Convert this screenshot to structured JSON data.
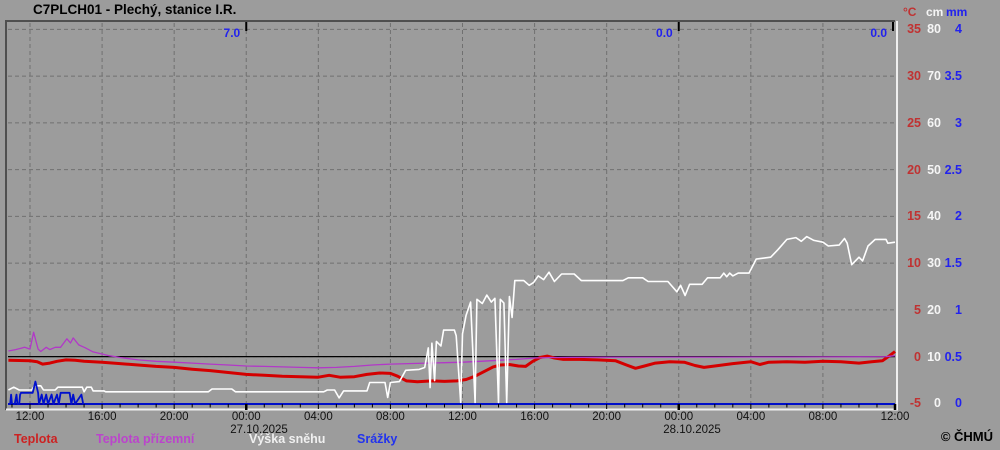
{
  "window": {
    "title": "C7PLCH01 - Plechý, stanice I.R.",
    "copyright": "© ČHMÚ"
  },
  "colors": {
    "background": "#9c9c9c",
    "grid": "#707070",
    "zero_line": "#000000",
    "temp_line": "#d40000",
    "ground_temp_line": "#b238c8",
    "snow_line": "#ffffff",
    "precip_line": "#0010cc",
    "axis_temp_text": "#c03232",
    "axis_snow_text": "#f5f5f5",
    "axis_precip_text": "#2222ee",
    "legend_temp": "#cc2222",
    "legend_ground": "#bb44cc",
    "legend_snow": "#f0f0f0",
    "legend_precip": "#2233ee"
  },
  "axes": {
    "x_labels": [
      "12:00",
      "16:00",
      "20:00",
      "00:00",
      "04:00",
      "08:00",
      "12:00",
      "16:00",
      "20:00",
      "00:00",
      "04:00",
      "08:00",
      "12:00"
    ],
    "dates": [
      "27.10.2025",
      "28.10.2025"
    ],
    "right_header": [
      "°C",
      "cm",
      "mm"
    ],
    "right_rows": [
      [
        "35",
        "80",
        "4"
      ],
      [
        "30",
        "70",
        "3.5"
      ],
      [
        "25",
        "60",
        "3"
      ],
      [
        "20",
        "50",
        "2.5"
      ],
      [
        "15",
        "40",
        "2"
      ],
      [
        "10",
        "30",
        "1.5"
      ],
      [
        "5",
        "20",
        "1"
      ],
      [
        "0",
        "10",
        "0.5"
      ],
      [
        "-5",
        "0",
        "0"
      ]
    ]
  },
  "legend": [
    {
      "label": "Teplota",
      "color": "#cc2222"
    },
    {
      "label": "Teplota přízemní",
      "color": "#bb44cc"
    },
    {
      "label": "Výška sněhu",
      "color": "#f0f0f0"
    },
    {
      "label": "Srážky",
      "color": "#2233ee"
    }
  ],
  "chart_data": {
    "type": "line",
    "title": "C7PLCH01 - Plechý, stanice I.R.",
    "x_axis": {
      "start": "26.10.2025 12:00",
      "end": "28.10.2025 12:00",
      "hours_total": 48,
      "label_every_hours": 4,
      "minor_tick_hours": 1,
      "midnight_hours": [
        12,
        36
      ]
    },
    "y_axes": {
      "temp_C": {
        "min": -5,
        "max": 35,
        "grid_step": 5,
        "zero_line": true
      },
      "snow_cm": {
        "min": 0,
        "max": 80
      },
      "precip_mm": {
        "min": 0,
        "max": 4
      }
    },
    "annotations": [
      {
        "text": "7.0",
        "t": 12
      },
      {
        "text": "0.0",
        "t": 36
      },
      {
        "text": "0.0",
        "t": 48
      }
    ],
    "series": [
      {
        "name": "Teplota",
        "unit": "temp_C",
        "color": "#d40000",
        "width": 3,
        "points": [
          [
            -1.2,
            -0.4
          ],
          [
            0,
            -0.45
          ],
          [
            0.4,
            -0.55
          ],
          [
            0.7,
            -0.8
          ],
          [
            1.1,
            -0.7
          ],
          [
            1.5,
            -0.5
          ],
          [
            2,
            -0.35
          ],
          [
            2.5,
            -0.4
          ],
          [
            3,
            -0.5
          ],
          [
            4,
            -0.6
          ],
          [
            5,
            -0.75
          ],
          [
            6,
            -0.9
          ],
          [
            7,
            -1.05
          ],
          [
            8,
            -1.15
          ],
          [
            9,
            -1.35
          ],
          [
            10,
            -1.5
          ],
          [
            11,
            -1.7
          ],
          [
            12,
            -1.9
          ],
          [
            13,
            -2.0
          ],
          [
            14,
            -2.1
          ],
          [
            15,
            -2.15
          ],
          [
            16,
            -2.2
          ],
          [
            16.6,
            -2.0
          ],
          [
            17.2,
            -2.2
          ],
          [
            18,
            -2.15
          ],
          [
            18.7,
            -1.9
          ],
          [
            19.4,
            -1.75
          ],
          [
            20,
            -1.8
          ],
          [
            20.4,
            -2.1
          ],
          [
            20.9,
            -2.6
          ],
          [
            21.5,
            -2.7
          ],
          [
            22.3,
            -2.6
          ],
          [
            23,
            -2.65
          ],
          [
            23.7,
            -2.6
          ],
          [
            24.2,
            -2.45
          ],
          [
            24.7,
            -2.1
          ],
          [
            25.2,
            -1.6
          ],
          [
            25.7,
            -1.1
          ],
          [
            26.1,
            -0.9
          ],
          [
            26.6,
            -0.85
          ],
          [
            27.1,
            -1.0
          ],
          [
            27.5,
            -1.05
          ],
          [
            27.9,
            -0.5
          ],
          [
            28.3,
            -0.1
          ],
          [
            28.7,
            0.05
          ],
          [
            29.1,
            -0.15
          ],
          [
            29.6,
            -0.3
          ],
          [
            30.5,
            -0.3
          ],
          [
            31.5,
            -0.35
          ],
          [
            32.5,
            -0.45
          ],
          [
            33.1,
            -0.9
          ],
          [
            33.6,
            -1.25
          ],
          [
            34.1,
            -1.0
          ],
          [
            34.7,
            -0.7
          ],
          [
            35.5,
            -0.55
          ],
          [
            36.3,
            -0.6
          ],
          [
            36.9,
            -0.95
          ],
          [
            37.4,
            -1.15
          ],
          [
            38,
            -1.0
          ],
          [
            39,
            -0.75
          ],
          [
            40,
            -0.55
          ],
          [
            40.5,
            -0.85
          ],
          [
            41,
            -0.6
          ],
          [
            42,
            -0.55
          ],
          [
            43,
            -0.6
          ],
          [
            44,
            -0.5
          ],
          [
            45,
            -0.55
          ],
          [
            46,
            -0.7
          ],
          [
            46.7,
            -0.55
          ],
          [
            47.3,
            -0.45
          ],
          [
            47.7,
            0.1
          ],
          [
            48,
            0.55
          ]
        ]
      },
      {
        "name": "Teplota přízemní",
        "unit": "temp_C",
        "color": "#b238c8",
        "width": 1.3,
        "points": [
          [
            -1.2,
            0.6
          ],
          [
            -0.8,
            0.75
          ],
          [
            -0.5,
            0.9
          ],
          [
            -0.3,
            1.0
          ],
          [
            0,
            0.8
          ],
          [
            0.2,
            2.6
          ],
          [
            0.45,
            0.8
          ],
          [
            0.6,
            0.55
          ],
          [
            0.9,
            1.0
          ],
          [
            1.1,
            0.75
          ],
          [
            1.4,
            1.0
          ],
          [
            1.7,
            1.0
          ],
          [
            2.05,
            1.9
          ],
          [
            2.25,
            1.45
          ],
          [
            2.4,
            2.0
          ],
          [
            2.7,
            1.25
          ],
          [
            3.05,
            0.95
          ],
          [
            3.5,
            0.5
          ],
          [
            4.05,
            0.25
          ],
          [
            4.4,
            0.1
          ],
          [
            5,
            -0.1
          ],
          [
            6,
            -0.35
          ],
          [
            7,
            -0.5
          ],
          [
            8,
            -0.6
          ],
          [
            9,
            -0.7
          ],
          [
            10,
            -0.8
          ],
          [
            11,
            -0.9
          ],
          [
            12,
            -1.0
          ],
          [
            13,
            -1.05
          ],
          [
            14,
            -1.1
          ],
          [
            15,
            -1.15
          ],
          [
            16,
            -1.2
          ],
          [
            17,
            -1.15
          ],
          [
            18,
            -1.05
          ],
          [
            19,
            -0.9
          ],
          [
            20,
            -0.8
          ],
          [
            21,
            -0.75
          ],
          [
            22,
            -0.7
          ],
          [
            23,
            -0.65
          ],
          [
            24,
            -0.6
          ],
          [
            25,
            -0.5
          ],
          [
            26,
            -0.4
          ],
          [
            27,
            -0.3
          ],
          [
            28,
            -0.15
          ],
          [
            29,
            -0.1
          ],
          [
            30,
            -0.08
          ],
          [
            32,
            -0.06
          ],
          [
            34,
            -0.05
          ],
          [
            36,
            -0.05
          ],
          [
            38,
            -0.05
          ],
          [
            40,
            -0.04
          ],
          [
            42,
            -0.04
          ],
          [
            44,
            -0.03
          ],
          [
            46,
            -0.02
          ],
          [
            47.5,
            0.0
          ],
          [
            48,
            0.1
          ]
        ]
      },
      {
        "name": "Výška sněhu",
        "unit": "snow_cm",
        "color": "#ffffff",
        "width": 1.6,
        "points": [
          [
            -1.2,
            3.0
          ],
          [
            -0.9,
            3.6
          ],
          [
            -0.6,
            3.0
          ],
          [
            0.1,
            3.0
          ],
          [
            0.25,
            3.9
          ],
          [
            0.6,
            3.9
          ],
          [
            0.75,
            3.0
          ],
          [
            1.4,
            3.0
          ],
          [
            1.55,
            3.6
          ],
          [
            2.9,
            3.6
          ],
          [
            3.0,
            2.6
          ],
          [
            3.15,
            3.6
          ],
          [
            3.4,
            3.6
          ],
          [
            3.5,
            2.8
          ],
          [
            4.1,
            2.8
          ],
          [
            4.2,
            2.6
          ],
          [
            9.9,
            2.6
          ],
          [
            10.1,
            3.2
          ],
          [
            11.2,
            3.2
          ],
          [
            11.4,
            2.6
          ],
          [
            16.3,
            2.6
          ],
          [
            16.5,
            3.0
          ],
          [
            16.9,
            3.0
          ],
          [
            17.15,
            1.3
          ],
          [
            17.4,
            2.8
          ],
          [
            18.7,
            2.8
          ],
          [
            18.85,
            4.6
          ],
          [
            19.7,
            4.6
          ],
          [
            19.85,
            1.4
          ],
          [
            20.0,
            4.6
          ],
          [
            20.5,
            4.8
          ],
          [
            20.85,
            7.2
          ],
          [
            21.6,
            7.4
          ],
          [
            21.9,
            7.8
          ],
          [
            22.1,
            12.0
          ],
          [
            22.2,
            3.5
          ],
          [
            22.3,
            13.0
          ],
          [
            22.45,
            5.0
          ],
          [
            22.55,
            13.4
          ],
          [
            22.8,
            12.4
          ],
          [
            22.95,
            15.8
          ],
          [
            23.55,
            15.8
          ],
          [
            23.65,
            14.6
          ],
          [
            23.9,
            0.3
          ],
          [
            24.0,
            15.0
          ],
          [
            24.2,
            19.0
          ],
          [
            24.45,
            21.8
          ],
          [
            24.7,
            0.3
          ],
          [
            24.8,
            22.4
          ],
          [
            25.1,
            21.5
          ],
          [
            25.35,
            23.3
          ],
          [
            25.6,
            21.8
          ],
          [
            25.8,
            22.6
          ],
          [
            26.0,
            0.3
          ],
          [
            26.1,
            22.4
          ],
          [
            26.3,
            21.6
          ],
          [
            26.45,
            0.3
          ],
          [
            26.6,
            23.0
          ],
          [
            26.75,
            18.5
          ],
          [
            26.9,
            26.4
          ],
          [
            27.4,
            26.4
          ],
          [
            27.7,
            25.4
          ],
          [
            27.95,
            26.0
          ],
          [
            28.2,
            27.4
          ],
          [
            28.5,
            26.6
          ],
          [
            28.8,
            28.2
          ],
          [
            29.1,
            26.2
          ],
          [
            29.5,
            27.8
          ],
          [
            30.2,
            27.8
          ],
          [
            30.6,
            26.4
          ],
          [
            32.9,
            26.4
          ],
          [
            33.2,
            27.0
          ],
          [
            34.0,
            27.0
          ],
          [
            34.3,
            26.2
          ],
          [
            35.4,
            26.2
          ],
          [
            35.9,
            24.0
          ],
          [
            36.1,
            25.4
          ],
          [
            36.35,
            23.2
          ],
          [
            36.6,
            25.6
          ],
          [
            37.3,
            25.6
          ],
          [
            37.6,
            27.0
          ],
          [
            38.3,
            27.0
          ],
          [
            38.5,
            28.0
          ],
          [
            38.66,
            27.2
          ],
          [
            38.83,
            28.0
          ],
          [
            39.0,
            27.4
          ],
          [
            39.3,
            28.0
          ],
          [
            39.9,
            28.0
          ],
          [
            40.3,
            31.0
          ],
          [
            41.1,
            31.4
          ],
          [
            41.5,
            33.0
          ],
          [
            42.0,
            35.2
          ],
          [
            42.5,
            35.6
          ],
          [
            42.8,
            34.8
          ],
          [
            43.1,
            35.8
          ],
          [
            43.5,
            35.0
          ],
          [
            44.0,
            34.6
          ],
          [
            44.3,
            33.8
          ],
          [
            44.9,
            34.0
          ],
          [
            45.2,
            35.4
          ],
          [
            45.35,
            34.4
          ],
          [
            45.6,
            29.8
          ],
          [
            46.0,
            31.4
          ],
          [
            46.2,
            30.6
          ],
          [
            46.5,
            33.8
          ],
          [
            46.9,
            35.2
          ],
          [
            47.5,
            35.2
          ],
          [
            47.6,
            34.4
          ],
          [
            48,
            34.6
          ]
        ]
      },
      {
        "name": "Srážky",
        "unit": "precip_mm",
        "color": "#0010cc",
        "width": 1.8,
        "points": [
          [
            -1.22,
            0
          ],
          [
            -1.1,
            0
          ],
          [
            -1.05,
            0.1
          ],
          [
            -1.0,
            0
          ],
          [
            -0.85,
            0
          ],
          [
            -0.75,
            0.1
          ],
          [
            -0.7,
            0
          ],
          [
            -0.6,
            0
          ],
          [
            -0.55,
            0.1
          ],
          [
            -0.5,
            0.12
          ],
          [
            0.15,
            0.12
          ],
          [
            0.3,
            0.24
          ],
          [
            0.45,
            0.12
          ],
          [
            0.5,
            0
          ],
          [
            0.65,
            0.1
          ],
          [
            0.75,
            0
          ],
          [
            0.9,
            0.1
          ],
          [
            1.0,
            0
          ],
          [
            1.2,
            0.1
          ],
          [
            1.3,
            0
          ],
          [
            1.5,
            0.1
          ],
          [
            1.6,
            0
          ],
          [
            1.7,
            0.12
          ],
          [
            2.2,
            0.12
          ],
          [
            2.3,
            0
          ],
          [
            2.4,
            0.1
          ],
          [
            2.5,
            0
          ],
          [
            2.85,
            0.1
          ],
          [
            2.95,
            0
          ],
          [
            48,
            0
          ]
        ]
      }
    ]
  }
}
